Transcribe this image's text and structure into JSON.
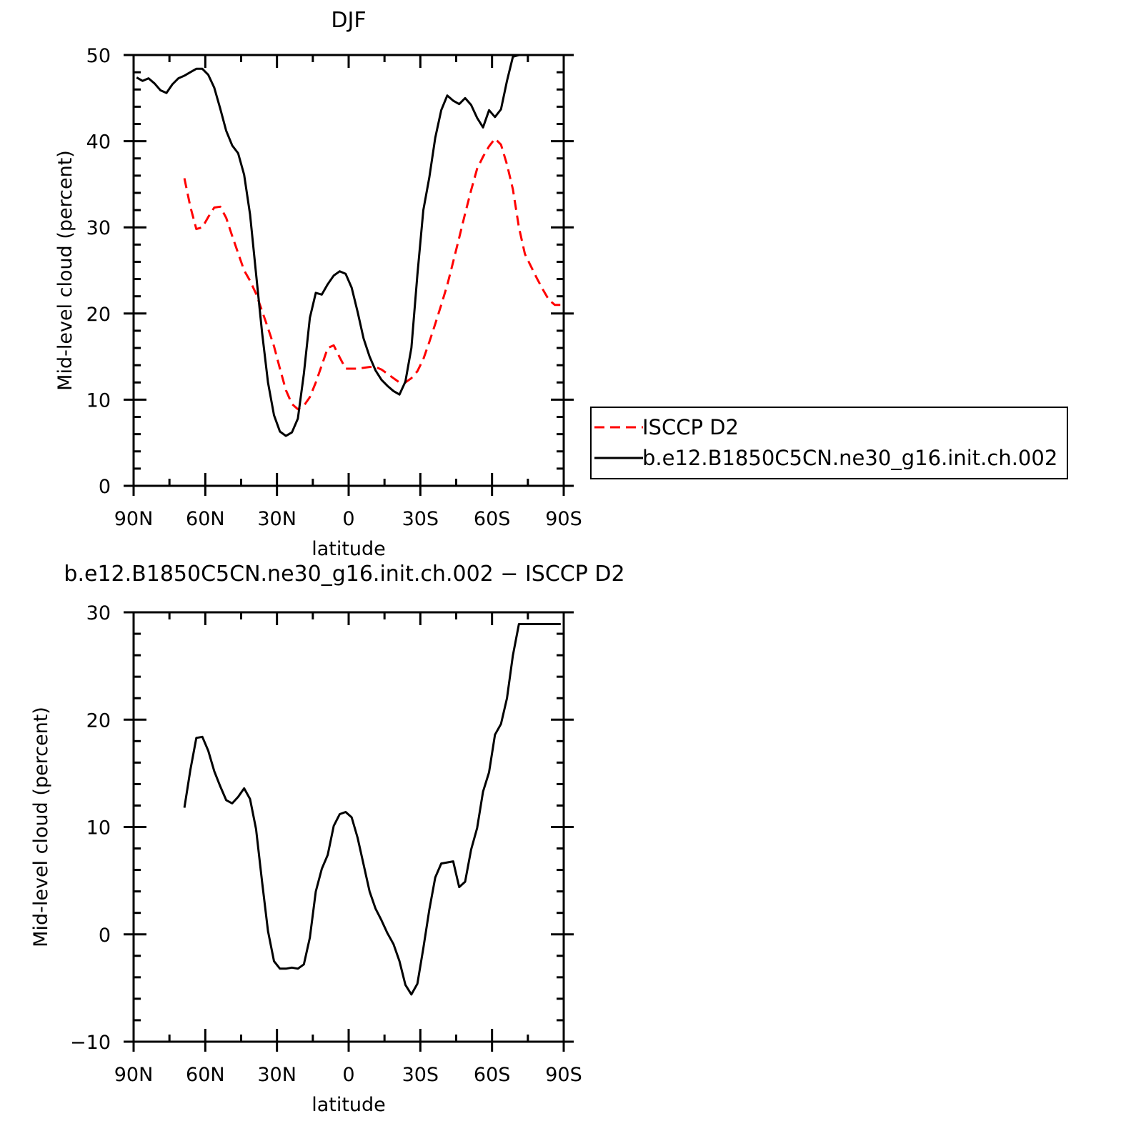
{
  "chart_data": [
    {
      "type": "line",
      "title": "DJF",
      "xlabel": "latitude",
      "ylabel": "Mid-level cloud (percent)",
      "xlim": [
        90,
        -90
      ],
      "ylim": [
        0,
        50
      ],
      "x_ticks": [
        90,
        60,
        30,
        0,
        -30,
        -60,
        -90
      ],
      "x_tick_labels": [
        "90N",
        "60N",
        "30N",
        "0",
        "30S",
        "60S",
        "90S"
      ],
      "y_ticks": [
        0,
        10,
        20,
        30,
        40,
        50
      ],
      "y_tick_labels": [
        "0",
        "10",
        "20",
        "30",
        "40",
        "50"
      ],
      "legend_placement": "right",
      "series": [
        {
          "name": "ISCCP D2",
          "color": "#ff0000",
          "dash": "dashed",
          "x": [
            68.75,
            66.25,
            63.75,
            61.25,
            58.75,
            56.25,
            53.75,
            51.25,
            48.75,
            46.25,
            43.75,
            41.25,
            38.75,
            36.25,
            33.75,
            31.25,
            28.75,
            26.25,
            23.75,
            21.25,
            18.75,
            16.25,
            13.75,
            11.25,
            8.75,
            6.25,
            3.75,
            1.25,
            -1.25,
            -3.75,
            -6.25,
            -8.75,
            -11.25,
            -13.75,
            -16.25,
            -18.75,
            -21.25,
            -23.75,
            -26.25,
            -28.75,
            -31.25,
            -33.75,
            -36.25,
            -38.75,
            -41.25,
            -43.75,
            -46.25,
            -48.75,
            -51.25,
            -53.75,
            -56.25,
            -58.75,
            -61.25,
            -63.75,
            -66.25,
            -68.75,
            -71.25,
            -73.75,
            -76.25,
            -78.75,
            -81.25,
            -83.75,
            -86.25,
            -88.75
          ],
          "values": [
            35.7,
            32.4,
            29.8,
            30.0,
            31.2,
            32.3,
            32.4,
            31.1,
            29.0,
            27.0,
            25.0,
            23.8,
            22.3,
            20.3,
            18.3,
            16.2,
            13.6,
            11.1,
            9.5,
            8.9,
            9.3,
            10.3,
            12.0,
            14.0,
            16.0,
            16.3,
            14.9,
            13.6,
            13.6,
            13.6,
            13.7,
            13.8,
            13.8,
            13.5,
            13.0,
            12.5,
            12.0,
            12.0,
            12.5,
            13.3,
            14.7,
            16.7,
            18.8,
            21.0,
            23.3,
            26.0,
            28.8,
            31.6,
            34.3,
            36.8,
            38.2,
            39.4,
            40.3,
            39.6,
            37.3,
            34.4,
            30.0,
            26.9,
            25.5,
            24.1,
            22.8,
            21.6,
            21.0,
            21.0
          ]
        },
        {
          "name": "b.e12.B1850C5CN.ne30_g16.init.ch.002",
          "color": "#000000",
          "dash": "solid",
          "x": [
            88.75,
            86.25,
            83.75,
            81.25,
            78.75,
            76.25,
            73.75,
            71.25,
            68.75,
            66.25,
            63.75,
            61.25,
            58.75,
            56.25,
            53.75,
            51.25,
            48.75,
            46.25,
            43.75,
            41.25,
            38.75,
            36.25,
            33.75,
            31.25,
            28.75,
            26.25,
            23.75,
            21.25,
            18.75,
            16.25,
            13.75,
            11.25,
            8.75,
            6.25,
            3.75,
            1.25,
            -1.25,
            -3.75,
            -6.25,
            -8.75,
            -11.25,
            -13.75,
            -16.25,
            -18.75,
            -21.25,
            -23.75,
            -26.25,
            -28.75,
            -31.25,
            -33.75,
            -36.25,
            -38.75,
            -41.25,
            -43.75,
            -46.25,
            -48.75,
            -51.25,
            -53.75,
            -56.25,
            -58.75,
            -61.25,
            -63.75,
            -66.25,
            -68.75,
            -71.25,
            -73.75,
            -76.25,
            -78.75,
            -81.25,
            -83.75,
            -86.25,
            -88.75
          ],
          "values": [
            47.4,
            47.0,
            47.3,
            46.7,
            45.9,
            45.6,
            46.6,
            47.3,
            47.6,
            48.0,
            48.4,
            48.4,
            47.7,
            46.2,
            43.8,
            41.2,
            39.5,
            38.6,
            36.1,
            31.5,
            24.6,
            17.8,
            12.0,
            8.2,
            6.3,
            5.8,
            6.2,
            7.8,
            13.0,
            19.5,
            22.4,
            22.2,
            23.4,
            24.4,
            24.9,
            24.6,
            23.0,
            20.2,
            17.1,
            15.0,
            13.4,
            12.3,
            11.6,
            11.0,
            10.6,
            12.1,
            16.0,
            24.5,
            32.0,
            35.8,
            40.4,
            43.6,
            45.3,
            44.7,
            44.3,
            45.0,
            44.2,
            42.7,
            41.6,
            43.6,
            42.8,
            43.7,
            47.0,
            49.8,
            50.0,
            50.0,
            50.0,
            50.0,
            50.0,
            50.0,
            50.0,
            50.0
          ]
        }
      ]
    },
    {
      "type": "line",
      "title": "b.e12.B1850C5CN.ne30_g16.init.ch.002 − ISCCP D2",
      "xlabel": "latitude",
      "ylabel": "Mid-level cloud (percent)",
      "xlim": [
        90,
        -90
      ],
      "ylim": [
        -10,
        30
      ],
      "x_ticks": [
        90,
        60,
        30,
        0,
        -30,
        -60,
        -90
      ],
      "x_tick_labels": [
        "90N",
        "60N",
        "30N",
        "0",
        "30S",
        "60S",
        "90S"
      ],
      "y_ticks": [
        -10,
        0,
        10,
        20,
        30
      ],
      "y_tick_labels": [
        "−10",
        "0",
        "10",
        "20",
        "30"
      ],
      "series": [
        {
          "color": "#000000",
          "dash": "solid",
          "x": [
            68.75,
            66.25,
            63.75,
            61.25,
            58.75,
            56.25,
            53.75,
            51.25,
            48.75,
            46.25,
            43.75,
            41.25,
            38.75,
            36.25,
            33.75,
            31.25,
            28.75,
            26.25,
            23.75,
            21.25,
            18.75,
            16.25,
            13.75,
            11.25,
            8.75,
            6.25,
            3.75,
            1.25,
            -1.25,
            -3.75,
            -6.25,
            -8.75,
            -11.25,
            -13.75,
            -16.25,
            -18.75,
            -21.25,
            -23.75,
            -26.25,
            -28.75,
            -31.25,
            -33.75,
            -36.25,
            -38.75,
            -41.25,
            -43.75,
            -46.25,
            -48.75,
            -51.25,
            -53.75,
            -56.25,
            -58.75,
            -61.25,
            -63.75,
            -66.25,
            -68.75,
            -71.25,
            -73.75,
            -76.25,
            -78.75,
            -81.25,
            -83.75,
            -86.25,
            -88.75
          ],
          "values": [
            11.8,
            15.3,
            18.3,
            18.4,
            17.1,
            15.2,
            13.8,
            12.5,
            12.2,
            12.8,
            13.6,
            12.6,
            9.8,
            4.9,
            0.3,
            -2.5,
            -3.2,
            -3.2,
            -3.1,
            -3.2,
            -2.8,
            -0.3,
            4.0,
            6.1,
            7.4,
            10.1,
            11.2,
            11.4,
            10.9,
            9.0,
            6.5,
            4.0,
            2.4,
            1.3,
            0.1,
            -0.9,
            -2.5,
            -4.7,
            -5.6,
            -4.6,
            -1.3,
            2.3,
            5.3,
            6.6,
            6.7,
            6.8,
            4.4,
            4.9,
            7.9,
            9.9,
            13.3,
            15.1,
            18.6,
            19.6,
            22.0,
            26.0,
            28.9,
            28.9,
            28.9,
            28.9,
            28.9,
            28.9,
            28.9,
            28.9
          ]
        }
      ]
    }
  ]
}
